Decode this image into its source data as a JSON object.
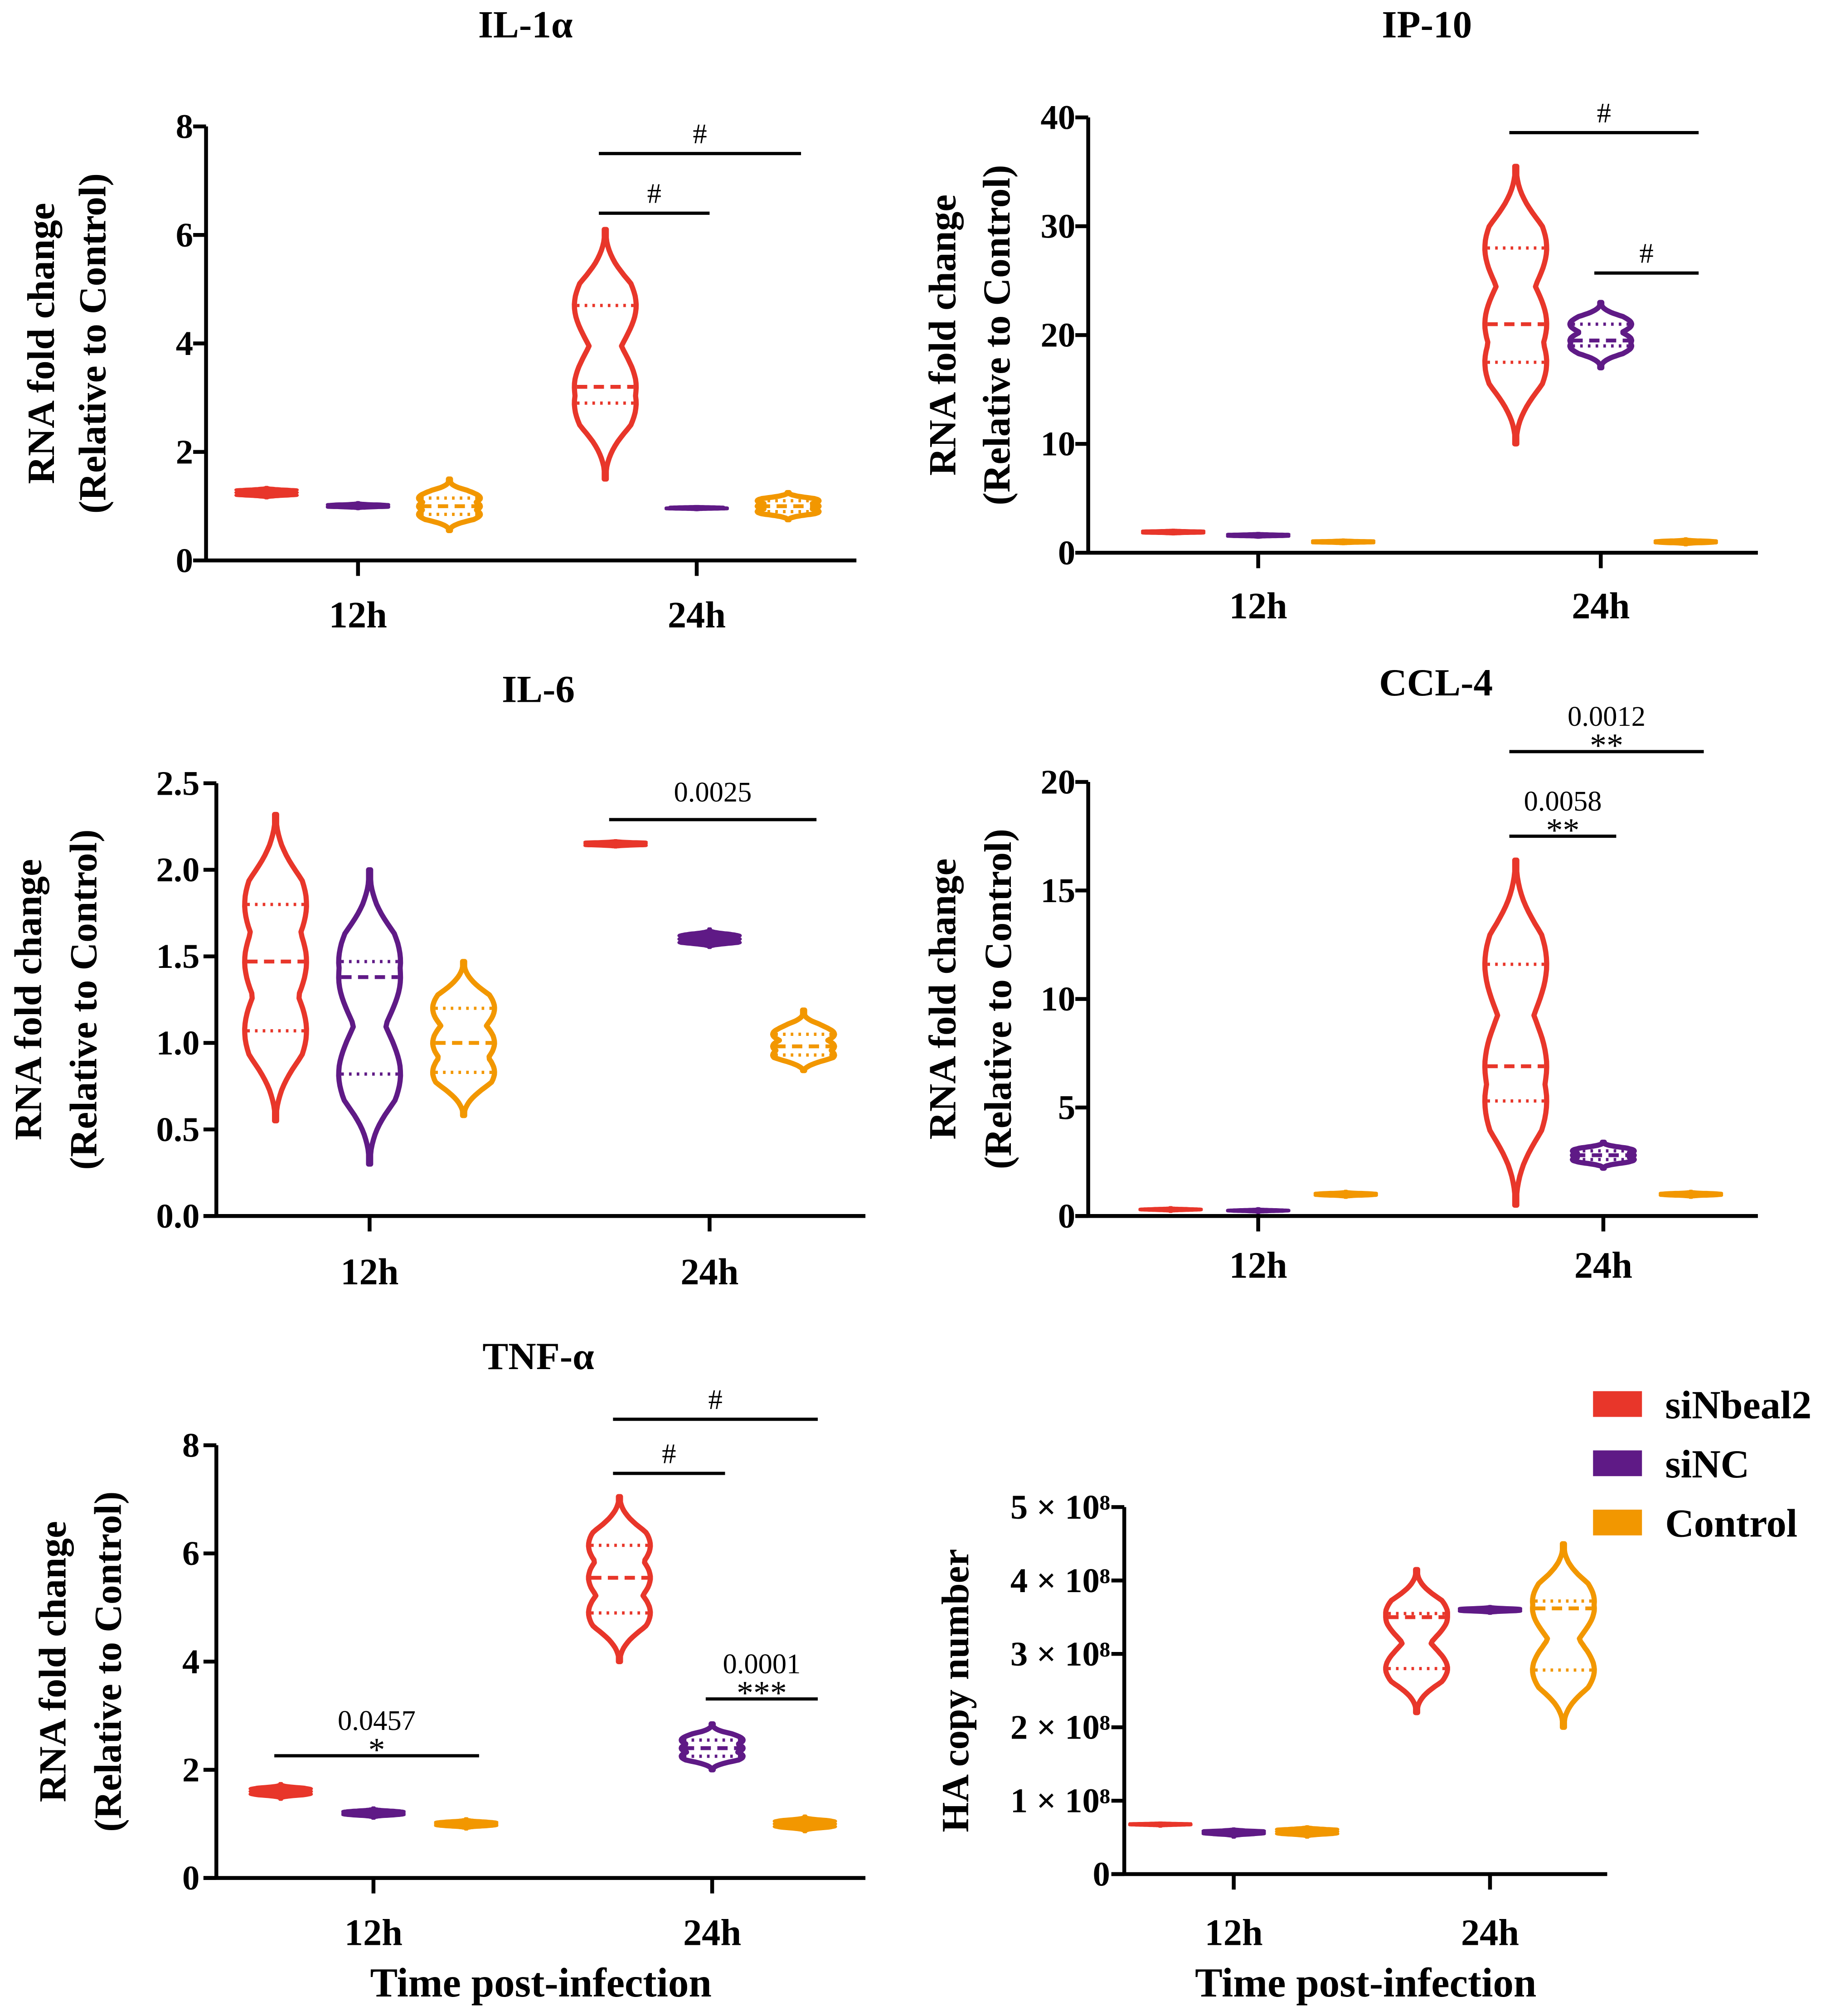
{
  "colors": {
    "siNbeal2": "#e8362a",
    "siNC": "#5f1a86",
    "Control": "#f29700"
  },
  "legend": [
    {
      "label": "siNbeal2",
      "color": "#e8362a"
    },
    {
      "label": "siNC",
      "color": "#5f1a86"
    },
    {
      "label": "Control",
      "color": "#f29700"
    }
  ],
  "chart_data": [
    {
      "type": "violin",
      "title": "IL-1α",
      "ylabel": [
        "RNA fold change",
        "(Relative to Control)"
      ],
      "xlabel": "",
      "ylim": [
        0,
        8
      ],
      "yticks": [
        0,
        2,
        4,
        6,
        8
      ],
      "ytick_labels": [
        "0",
        "2",
        "4",
        "6",
        "8"
      ],
      "categories": [
        "12h",
        "24h"
      ],
      "groups": [
        "siNbeal2",
        "siNC",
        "Control"
      ],
      "violins": [
        {
          "cat": 0,
          "group": 0,
          "median": 1.25,
          "q1": 1.2,
          "q3": 1.3,
          "min": 1.15,
          "max": 1.35
        },
        {
          "cat": 0,
          "group": 1,
          "median": 1.0,
          "q1": 0.98,
          "q3": 1.03,
          "min": 0.95,
          "max": 1.07
        },
        {
          "cat": 0,
          "group": 2,
          "median": 1.0,
          "q1": 0.85,
          "q3": 1.15,
          "min": 0.55,
          "max": 1.5
        },
        {
          "cat": 1,
          "group": 0,
          "median": 3.2,
          "q1": 2.9,
          "q3": 4.7,
          "min": 1.5,
          "max": 6.1
        },
        {
          "cat": 1,
          "group": 1,
          "median": 0.97,
          "q1": 0.95,
          "q3": 0.99,
          "min": 0.93,
          "max": 1.0
        },
        {
          "cat": 1,
          "group": 2,
          "median": 1.0,
          "q1": 0.9,
          "q3": 1.1,
          "min": 0.75,
          "max": 1.25
        }
      ],
      "annotations": [
        {
          "cat": 1,
          "from": 0,
          "to": 1,
          "y": 6.4,
          "stars": "#",
          "p": ""
        },
        {
          "cat": 1,
          "from": 0,
          "to": 2,
          "y": 7.5,
          "stars": "#",
          "p": ""
        }
      ]
    },
    {
      "type": "violin",
      "title": "IP-10",
      "ylabel": [
        "RNA fold change",
        "(Relative to Control)"
      ],
      "xlabel": "",
      "ylim": [
        0,
        40
      ],
      "yticks": [
        0,
        10,
        20,
        30,
        40
      ],
      "ytick_labels": [
        "0",
        "10",
        "20",
        "30",
        "40"
      ],
      "categories": [
        "12h",
        "24h"
      ],
      "groups": [
        "siNbeal2",
        "siNC",
        "Control"
      ],
      "violins": [
        {
          "cat": 0,
          "group": 0,
          "median": 1.9,
          "q1": 1.8,
          "q3": 2.0,
          "min": 1.7,
          "max": 2.1
        },
        {
          "cat": 0,
          "group": 1,
          "median": 1.6,
          "q1": 1.5,
          "q3": 1.7,
          "min": 1.4,
          "max": 1.8
        },
        {
          "cat": 0,
          "group": 2,
          "median": 1.0,
          "q1": 0.9,
          "q3": 1.1,
          "min": 0.8,
          "max": 1.2
        },
        {
          "cat": 1,
          "group": 0,
          "median": 21,
          "q1": 17.5,
          "q3": 28,
          "min": 10,
          "max": 35.5
        },
        {
          "cat": 1,
          "group": 1,
          "median": 19.5,
          "q1": 19,
          "q3": 21,
          "min": 17,
          "max": 23
        },
        {
          "cat": 1,
          "group": 2,
          "median": 1.0,
          "q1": 0.9,
          "q3": 1.1,
          "min": 0.7,
          "max": 1.3
        }
      ],
      "annotations": [
        {
          "cat": 1,
          "from": 0,
          "to": 2,
          "y": 38.6,
          "stars": "#",
          "p": ""
        },
        {
          "cat": 1,
          "from": 1,
          "to": 2,
          "y": 25.7,
          "stars": "#",
          "p": ""
        }
      ]
    },
    {
      "type": "violin",
      "title": "IL-6",
      "ylabel": [
        "RNA fold change",
        "(Relative to Control)"
      ],
      "xlabel": "",
      "ylim": [
        0,
        2.5
      ],
      "yticks": [
        0,
        0.5,
        1.0,
        1.5,
        2.0,
        2.5
      ],
      "ytick_labels": [
        "0.0",
        "0.5",
        "1.0",
        "1.5",
        "2.0",
        "2.5"
      ],
      "categories": [
        "12h",
        "24h"
      ],
      "groups": [
        "siNbeal2",
        "siNC",
        "Control"
      ],
      "violins": [
        {
          "cat": 0,
          "group": 0,
          "median": 1.47,
          "q1": 1.07,
          "q3": 1.8,
          "min": 0.55,
          "max": 2.32
        },
        {
          "cat": 0,
          "group": 1,
          "median": 1.38,
          "q1": 0.82,
          "q3": 1.47,
          "min": 0.3,
          "max": 2.0
        },
        {
          "cat": 0,
          "group": 2,
          "median": 1.0,
          "q1": 0.83,
          "q3": 1.2,
          "min": 0.58,
          "max": 1.47
        },
        {
          "cat": 1,
          "group": 0,
          "median": 2.15,
          "q1": 2.14,
          "q3": 2.16,
          "min": 2.13,
          "max": 2.17
        },
        {
          "cat": 1,
          "group": 1,
          "median": 1.6,
          "q1": 1.58,
          "q3": 1.62,
          "min": 1.55,
          "max": 1.66
        },
        {
          "cat": 1,
          "group": 2,
          "median": 0.98,
          "q1": 0.93,
          "q3": 1.05,
          "min": 0.84,
          "max": 1.19
        }
      ],
      "annotations": [
        {
          "cat": 1,
          "from": 0,
          "to": 2,
          "y": 2.29,
          "stars": "",
          "p": "0.0025"
        }
      ]
    },
    {
      "type": "violin",
      "title": "CCL-4",
      "ylabel": [
        "RNA fold change",
        "(Relative to Control)"
      ],
      "xlabel": "",
      "ylim": [
        0,
        20
      ],
      "yticks": [
        0,
        5,
        10,
        15,
        20
      ],
      "ytick_labels": [
        "0",
        "5",
        "10",
        "15",
        "20"
      ],
      "categories": [
        "12h",
        "24h"
      ],
      "groups": [
        "siNbeal2",
        "siNC",
        "Control"
      ],
      "violins": [
        {
          "cat": 0,
          "group": 0,
          "median": 0.3,
          "q1": 0.28,
          "q3": 0.32,
          "min": 0.2,
          "max": 0.4
        },
        {
          "cat": 0,
          "group": 1,
          "median": 0.25,
          "q1": 0.23,
          "q3": 0.27,
          "min": 0.15,
          "max": 0.35
        },
        {
          "cat": 0,
          "group": 2,
          "median": 1.0,
          "q1": 0.95,
          "q3": 1.05,
          "min": 0.85,
          "max": 1.15
        },
        {
          "cat": 1,
          "group": 0,
          "median": 6.9,
          "q1": 5.3,
          "q3": 11.6,
          "min": 0.5,
          "max": 16.4
        },
        {
          "cat": 1,
          "group": 1,
          "median": 2.8,
          "q1": 2.6,
          "q3": 3.0,
          "min": 2.2,
          "max": 3.4
        },
        {
          "cat": 1,
          "group": 2,
          "median": 1.0,
          "q1": 0.95,
          "q3": 1.05,
          "min": 0.85,
          "max": 1.15
        }
      ],
      "annotations": [
        {
          "cat": 1,
          "from": 0,
          "to": 1,
          "y": 17.5,
          "stars": "**",
          "p": "0.0058"
        },
        {
          "cat": 1,
          "from": 0,
          "to": 2,
          "y": 21.4,
          "stars": "**",
          "p": "0.0012"
        }
      ]
    },
    {
      "type": "violin",
      "title": "TNF-α",
      "ylabel": [
        "RNA fold change",
        "(Relative to Control)"
      ],
      "xlabel": "Time post-infection",
      "ylim": [
        0,
        8
      ],
      "yticks": [
        0,
        2,
        4,
        6,
        8
      ],
      "ytick_labels": [
        "0",
        "2",
        "4",
        "6",
        "8"
      ],
      "categories": [
        "12h",
        "24h"
      ],
      "groups": [
        "siNbeal2",
        "siNC",
        "Control"
      ],
      "violins": [
        {
          "cat": 0,
          "group": 0,
          "median": 1.6,
          "q1": 1.55,
          "q3": 1.65,
          "min": 1.45,
          "max": 1.75
        },
        {
          "cat": 0,
          "group": 1,
          "median": 1.2,
          "q1": 1.17,
          "q3": 1.23,
          "min": 1.1,
          "max": 1.3
        },
        {
          "cat": 0,
          "group": 2,
          "median": 1.0,
          "q1": 0.97,
          "q3": 1.03,
          "min": 0.9,
          "max": 1.1
        },
        {
          "cat": 1,
          "group": 0,
          "median": 5.55,
          "q1": 4.9,
          "q3": 6.15,
          "min": 4.0,
          "max": 7.05
        },
        {
          "cat": 1,
          "group": 1,
          "median": 2.4,
          "q1": 2.25,
          "q3": 2.55,
          "min": 2.0,
          "max": 2.85
        },
        {
          "cat": 1,
          "group": 2,
          "median": 1.0,
          "q1": 0.95,
          "q3": 1.05,
          "min": 0.85,
          "max": 1.15
        }
      ],
      "annotations": [
        {
          "cat": 0,
          "from": 0,
          "to": 2,
          "y": 2.26,
          "stars": "*",
          "p": "0.0457"
        },
        {
          "cat": 1,
          "from": 0,
          "to": 1,
          "y": 7.48,
          "stars": "#",
          "p": ""
        },
        {
          "cat": 1,
          "from": 0,
          "to": 2,
          "y": 8.48,
          "stars": "#",
          "p": ""
        },
        {
          "cat": 1,
          "from": 1,
          "to": 2,
          "y": 3.31,
          "stars": "***",
          "p": "0.0001"
        }
      ]
    },
    {
      "type": "violin",
      "title": "",
      "ylabel": [
        "HA copy number"
      ],
      "xlabel": "Time post-infection",
      "yunit": "1e8",
      "ylim": [
        0,
        5
      ],
      "yticks": [
        0,
        1,
        2,
        3,
        4,
        5
      ],
      "ytick_labels": [
        "0",
        "1 × 10⁸",
        "2 × 10⁸",
        "3 × 10⁸",
        "4 × 10⁸",
        "5 × 10⁸"
      ],
      "categories": [
        "12h",
        "24h"
      ],
      "groups": [
        "siNbeal2",
        "siNC",
        "Control"
      ],
      "violins": [
        {
          "cat": 0,
          "group": 0,
          "median": 0.68,
          "q1": 0.67,
          "q3": 0.69,
          "min": 0.65,
          "max": 0.7
        },
        {
          "cat": 0,
          "group": 1,
          "median": 0.57,
          "q1": 0.55,
          "q3": 0.59,
          "min": 0.5,
          "max": 0.62
        },
        {
          "cat": 0,
          "group": 2,
          "median": 0.58,
          "q1": 0.55,
          "q3": 0.61,
          "min": 0.5,
          "max": 0.65
        },
        {
          "cat": 1,
          "group": 0,
          "median": 3.5,
          "q1": 2.8,
          "q3": 3.55,
          "min": 2.2,
          "max": 4.15
        },
        {
          "cat": 1,
          "group": 1,
          "median": 3.6,
          "q1": 3.58,
          "q3": 3.62,
          "min": 3.55,
          "max": 3.65
        },
        {
          "cat": 1,
          "group": 2,
          "median": 3.62,
          "q1": 2.78,
          "q3": 3.72,
          "min": 2.0,
          "max": 4.5
        }
      ],
      "annotations": []
    }
  ]
}
